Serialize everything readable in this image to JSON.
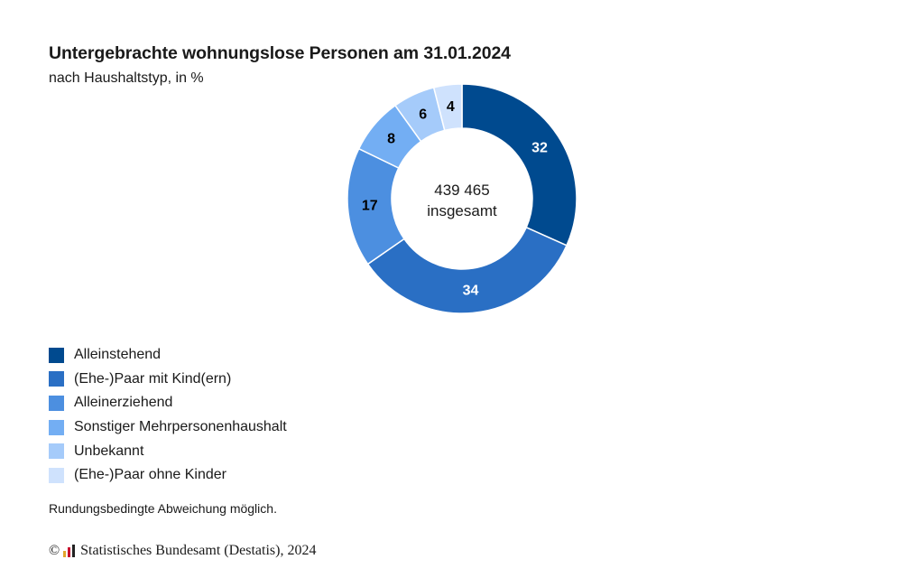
{
  "title": "Untergebrachte wohnungslose Personen am 31.01.2024",
  "subtitle": "nach Haushaltstyp, in %",
  "center_label": {
    "total": "439 465",
    "caption": "insgesamt"
  },
  "chart_data": {
    "type": "pie",
    "variant": "donut",
    "categories": [
      "Alleinstehend",
      "(Ehe-)Paar mit Kind(ern)",
      "Alleinerziehend",
      "Sonstiger Mehrpersonenhaushalt",
      "Unbekannt",
      "(Ehe-)Paar ohne Kinder"
    ],
    "values": [
      32,
      34,
      17,
      8,
      6,
      4
    ],
    "colors": [
      "#004a8f",
      "#2a6fc4",
      "#4c8fe0",
      "#73aef3",
      "#a5cbfa",
      "#cfe2fd"
    ],
    "label_colors": [
      "#ffffff",
      "#ffffff",
      "#000000",
      "#000000",
      "#000000",
      "#000000"
    ],
    "legend_position": "bottom-left"
  },
  "footnote": "Rundungsbedingte Abweichung möglich.",
  "source": {
    "copyright": "©",
    "text": "Statistisches Bundesamt (Destatis), 2024",
    "logo_colors": [
      "#e2a52b",
      "#c8102e",
      "#222222"
    ]
  }
}
